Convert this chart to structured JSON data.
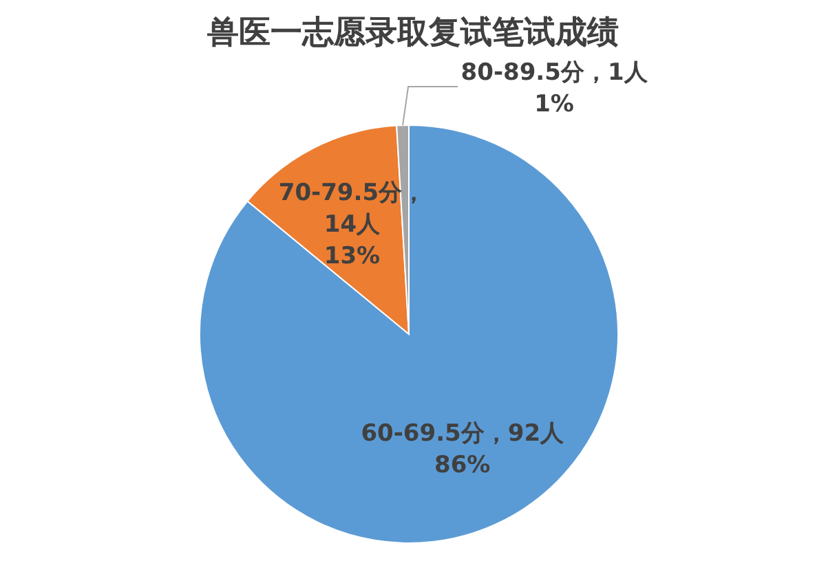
{
  "chart_data": {
    "type": "pie",
    "title": "兽医一志愿录取复试笔试成绩",
    "categories": [
      "60-69.5分",
      "70-79.5分",
      "80-89.5分"
    ],
    "values": [
      92,
      14,
      1
    ],
    "colors": [
      "#5b9bd5",
      "#ed7d31",
      "#a5a5a5"
    ],
    "value_labels": [
      "，92人\n86%",
      "，\n14人\n13%",
      "，1人\n1%"
    ]
  }
}
